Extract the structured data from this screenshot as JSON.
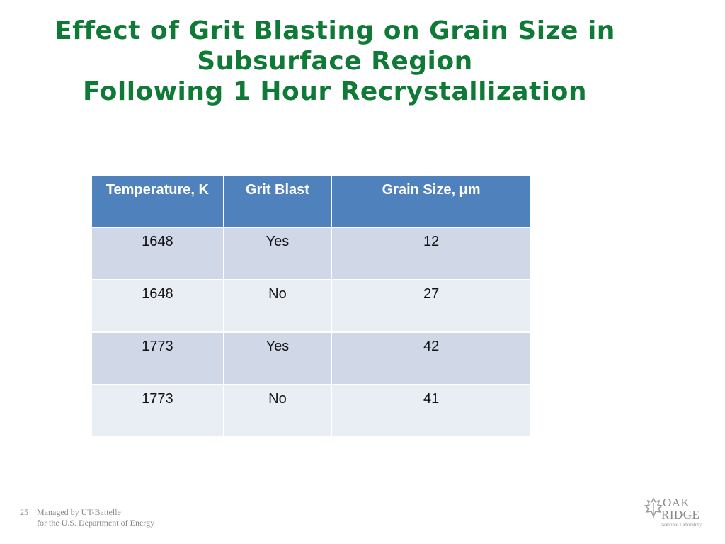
{
  "title": {
    "line1": "Effect of Grit Blasting on Grain Size in",
    "line2": "Subsurface Region",
    "line3": "Following 1 Hour Recrystallization"
  },
  "table": {
    "headers": [
      "Temperature, K",
      "Grit Blast",
      "Grain Size, μm"
    ],
    "rows": [
      [
        "1648",
        "Yes",
        "12"
      ],
      [
        "1648",
        "No",
        "27"
      ],
      [
        "1773",
        "Yes",
        "42"
      ],
      [
        "1773",
        "No",
        "41"
      ]
    ]
  },
  "footer": {
    "slide_number": "25",
    "line1": "Managed by UT-Battelle",
    "line2": "for the U.S. Department of Energy"
  },
  "logo": {
    "line1": "OAK",
    "line2": "RIDGE",
    "line3": "National Laboratory"
  },
  "colors": {
    "title": "#0e7a35",
    "header_bg": "#4f81bd",
    "row_odd_bg": "#d0d8e8",
    "row_even_bg": "#e9edf4"
  }
}
